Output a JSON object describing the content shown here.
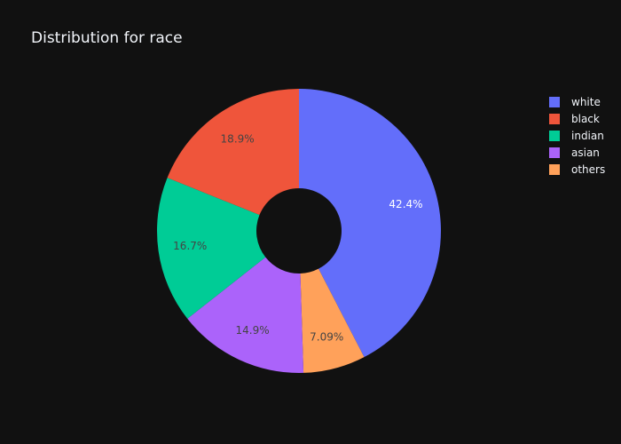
{
  "chart_data": {
    "type": "pie",
    "title": "Distribution for race",
    "hole": true,
    "legend_position": "top-right",
    "categories": [
      "white",
      "black",
      "indian",
      "asian",
      "others"
    ],
    "values": [
      42.4,
      18.9,
      16.7,
      14.9,
      7.09
    ],
    "value_labels": [
      "42.4%",
      "18.9%",
      "16.7%",
      "14.9%",
      "7.09%"
    ],
    "order_in_chart_clockwise_from_top": [
      "white",
      "others",
      "asian",
      "indian",
      "black"
    ],
    "colors": {
      "white": "#636efa",
      "black": "#ef553b",
      "indian": "#00cc96",
      "asian": "#ab63fa",
      "others": "#ffa15a"
    },
    "label_colors": {
      "white": "#ffffff",
      "black": "#444444",
      "indian": "#444444",
      "asian": "#444444",
      "others": "#444444"
    },
    "background": "#111111"
  }
}
